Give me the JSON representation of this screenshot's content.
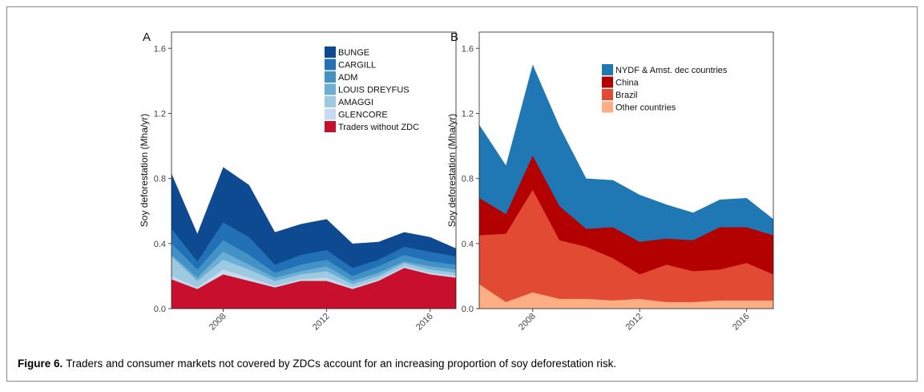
{
  "chart_data": [
    {
      "type": "stacked-area",
      "label": "A",
      "ylabel": "Soy deforestation (Mha/yr)",
      "x": [
        2006,
        2007,
        2008,
        2009,
        2010,
        2011,
        2012,
        2013,
        2014,
        2015,
        2016,
        2017
      ],
      "xlim": [
        2006,
        2017
      ],
      "xticks": [
        2008,
        2012,
        2016
      ],
      "ylim": [
        0,
        1.7
      ],
      "yticks": [
        {
          "value": 0,
          "label": "0.0"
        },
        0.4,
        0.8,
        1.2,
        1.6
      ],
      "series": [
        {
          "name": "BUNGE",
          "color": "#0d4a91",
          "values": [
            0.34,
            0.17,
            0.34,
            0.32,
            0.2,
            0.19,
            0.19,
            0.15,
            0.11,
            0.09,
            0.09,
            0.05
          ]
        },
        {
          "name": "CARGILL",
          "color": "#2270b5",
          "values": [
            0.09,
            0.05,
            0.11,
            0.11,
            0.05,
            0.06,
            0.06,
            0.05,
            0.04,
            0.05,
            0.06,
            0.05
          ]
        },
        {
          "name": "ADM",
          "color": "#4292c6",
          "values": [
            0.07,
            0.05,
            0.07,
            0.06,
            0.03,
            0.04,
            0.04,
            0.03,
            0.04,
            0.04,
            0.03,
            0.03
          ]
        },
        {
          "name": "LOUIS DREYFUS",
          "color": "#6baed6",
          "values": [
            0.01,
            0.02,
            0.05,
            0.03,
            0.02,
            0.02,
            0.03,
            0.02,
            0.02,
            0.01,
            0.02,
            0.02
          ]
        },
        {
          "name": "AMAGGI",
          "color": "#9ecae1",
          "values": [
            0.12,
            0.04,
            0.06,
            0.05,
            0.03,
            0.03,
            0.04,
            0.02,
            0.02,
            0.02,
            0.02,
            0.02
          ]
        },
        {
          "name": "GLENCORE",
          "color": "#c6dbef",
          "values": [
            0.02,
            0.01,
            0.03,
            0.02,
            0.01,
            0.01,
            0.02,
            0.01,
            0.01,
            0.01,
            0.01,
            0.01
          ]
        },
        {
          "name": "Traders without ZDC",
          "color": "#c8102e",
          "values": [
            0.18,
            0.12,
            0.21,
            0.17,
            0.13,
            0.17,
            0.17,
            0.12,
            0.17,
            0.25,
            0.21,
            0.19
          ]
        }
      ]
    },
    {
      "type": "stacked-area",
      "label": "B",
      "ylabel": "Soy deforestation (Mha/yr)",
      "x": [
        2006,
        2007,
        2008,
        2009,
        2010,
        2011,
        2012,
        2013,
        2014,
        2015,
        2016,
        2017
      ],
      "xlim": [
        2006,
        2017
      ],
      "xticks": [
        2008,
        2012,
        2016
      ],
      "ylim": [
        0,
        1.7
      ],
      "yticks": [
        {
          "value": 0,
          "label": "0.0"
        },
        0.4,
        0.8,
        1.2,
        1.6
      ],
      "series": [
        {
          "name": "NYDF & Amst. dec countries",
          "color": "#1f77b4",
          "values": [
            0.45,
            0.3,
            0.56,
            0.49,
            0.31,
            0.29,
            0.29,
            0.21,
            0.17,
            0.17,
            0.18,
            0.1
          ]
        },
        {
          "name": "China",
          "color": "#b30000",
          "values": [
            0.23,
            0.12,
            0.21,
            0.21,
            0.11,
            0.19,
            0.2,
            0.16,
            0.19,
            0.26,
            0.22,
            0.24
          ]
        },
        {
          "name": "Brazil",
          "color": "#e34a33",
          "values": [
            0.3,
            0.42,
            0.63,
            0.36,
            0.32,
            0.26,
            0.15,
            0.23,
            0.19,
            0.19,
            0.23,
            0.16
          ]
        },
        {
          "name": "Other countries",
          "color": "#fdae84",
          "values": [
            0.15,
            0.04,
            0.1,
            0.06,
            0.06,
            0.05,
            0.06,
            0.04,
            0.04,
            0.05,
            0.05,
            0.05
          ]
        }
      ]
    }
  ],
  "caption": {
    "label": "Figure 6.",
    "text": "Traders and consumer markets not covered by ZDCs account for an increasing proportion of soy deforestation risk."
  }
}
